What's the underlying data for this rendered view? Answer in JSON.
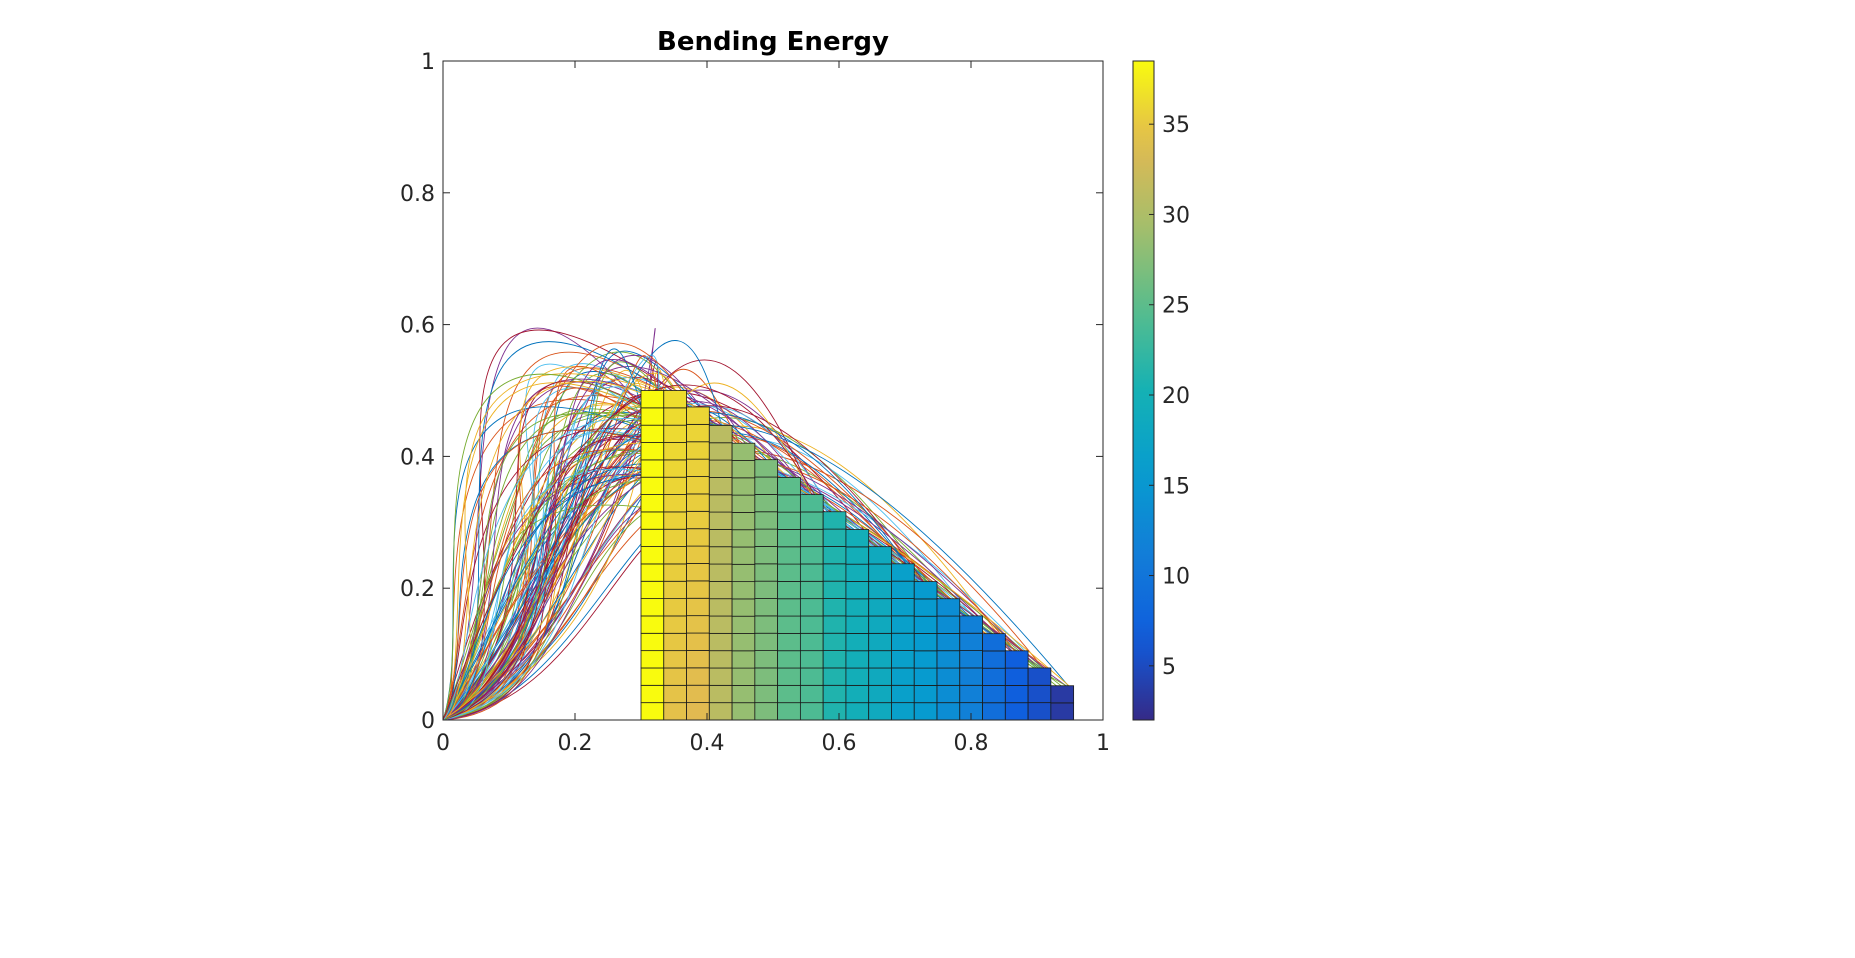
{
  "chart_data": {
    "type": "heatmap",
    "title": "Bending Energy",
    "xlabel": "",
    "ylabel": "",
    "xlim": [
      0,
      1
    ],
    "ylim": [
      0,
      1
    ],
    "x_ticks": [
      0,
      0.2,
      0.4,
      0.6,
      0.8,
      1
    ],
    "x_tick_labels": [
      "0",
      "0.2",
      "0.4",
      "0.6",
      "0.8",
      "1"
    ],
    "y_ticks": [
      0,
      0.2,
      0.4,
      0.6,
      0.8,
      1
    ],
    "y_tick_labels": [
      "0",
      "0.2",
      "0.4",
      "0.6",
      "0.8",
      "1"
    ],
    "grid": false,
    "cells": {
      "x_start": 0.3,
      "cell_width": 0.0345,
      "cell_height": 0.0263,
      "columns": [
        {
          "x": 0.3,
          "top": 0.5,
          "value": 38.5
        },
        {
          "x": 0.3345,
          "top": 0.5,
          "value": 34.5
        },
        {
          "x": 0.369,
          "top": 0.475,
          "value": 34.0
        },
        {
          "x": 0.4035,
          "top": 0.447,
          "value": 31.0
        },
        {
          "x": 0.438,
          "top": 0.42,
          "value": 28.5
        },
        {
          "x": 0.4725,
          "top": 0.395,
          "value": 27.0
        },
        {
          "x": 0.507,
          "top": 0.368,
          "value": 25.0
        },
        {
          "x": 0.5415,
          "top": 0.342,
          "value": 24.0
        },
        {
          "x": 0.576,
          "top": 0.316,
          "value": 21.0
        },
        {
          "x": 0.6105,
          "top": 0.289,
          "value": 19.5
        },
        {
          "x": 0.645,
          "top": 0.263,
          "value": 18.5
        },
        {
          "x": 0.6795,
          "top": 0.237,
          "value": 16.5
        },
        {
          "x": 0.714,
          "top": 0.21,
          "value": 15.5
        },
        {
          "x": 0.7485,
          "top": 0.184,
          "value": 13.5
        },
        {
          "x": 0.783,
          "top": 0.158,
          "value": 11.5
        },
        {
          "x": 0.8175,
          "top": 0.131,
          "value": 9.0
        },
        {
          "x": 0.852,
          "top": 0.105,
          "value": 7.0
        },
        {
          "x": 0.8865,
          "top": 0.079,
          "value": 5.5
        },
        {
          "x": 0.921,
          "top": 0.052,
          "value": 3.5
        }
      ]
    },
    "curves": {
      "count": 140,
      "start": [
        0,
        0
      ],
      "note_visible": "many trajectory curves from origin, peaking near y 0.6, ending along the staircase edge"
    },
    "colorbar": {
      "range": [
        2,
        38.5
      ],
      "ticks": [
        5,
        10,
        15,
        20,
        25,
        30,
        35
      ],
      "tick_labels": [
        "5",
        "10",
        "15",
        "20",
        "25",
        "30",
        "35"
      ],
      "colormap": "parula"
    },
    "line_colors": [
      "#0072BD",
      "#D95319",
      "#EDB120",
      "#7E2F8E",
      "#77AC30",
      "#4DBEEE",
      "#A2142F"
    ]
  }
}
